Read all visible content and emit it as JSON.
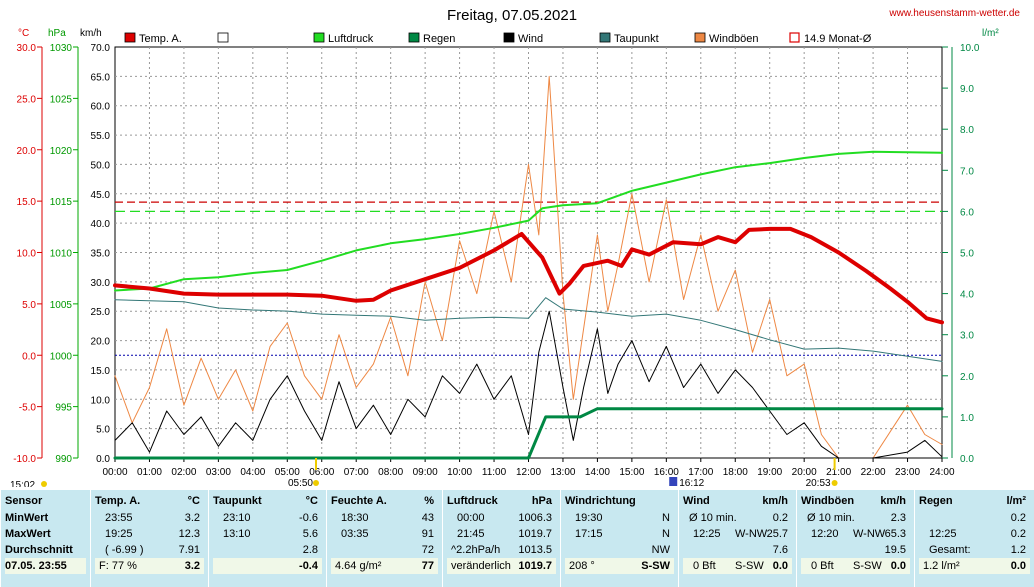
{
  "title": "Freitag, 07.05.2021",
  "source": "www.heusenstamm-wetter.de",
  "axes": {
    "temp_unit": "°C",
    "hpa_unit": "hPa",
    "kmh_unit": "km/h",
    "rain_unit": "l/m²",
    "temp_ticks": [
      "30.0",
      "25.0",
      "20.0",
      "15.0",
      "10.0",
      "5.0",
      "0.0",
      "-5.0",
      "-10.0"
    ],
    "hpa_ticks": [
      "1030",
      "1025",
      "1020",
      "1015",
      "1010",
      "1005",
      "1000",
      "995",
      "990"
    ],
    "kmh_ticks": [
      "70.0",
      "65.0",
      "60.0",
      "55.0",
      "50.0",
      "45.0",
      "40.0",
      "35.0",
      "30.0",
      "25.0",
      "20.0",
      "15.0",
      "10.0",
      "5.0",
      "0.0"
    ],
    "rain_ticks": [
      "10.0",
      "9.0",
      "8.0",
      "7.0",
      "6.0",
      "5.0",
      "4.0",
      "3.0",
      "2.0",
      "1.0",
      "0.0"
    ],
    "time_ticks": [
      "00:00",
      "01:00",
      "02:00",
      "03:00",
      "04:00",
      "05:00",
      "06:00",
      "07:00",
      "08:00",
      "09:00",
      "10:00",
      "11:00",
      "12:00",
      "13:00",
      "14:00",
      "15:00",
      "16:00",
      "17:00",
      "18:00",
      "19:00",
      "20:00",
      "21:00",
      "22:00",
      "23:00",
      "24:00"
    ],
    "markers": {
      "sunrise": "05:50",
      "sunset": "20:53",
      "left": "15:02",
      "mid": "16:12"
    }
  },
  "legend": [
    {
      "label": "Temp. A.",
      "color": "#dd0000"
    },
    {
      "label": "",
      "color": "#ffffff"
    },
    {
      "label": "Luftdruck",
      "color": "#22dd22"
    },
    {
      "label": "Regen",
      "color": "#008844"
    },
    {
      "label": "Wind",
      "color": "#000000"
    },
    {
      "label": "Taupunkt",
      "color": "#337777"
    },
    {
      "label": "Windböen",
      "color": "#ee8844"
    },
    {
      "label": "14.9 Monat-Ø",
      "color": "#dd0000"
    }
  ],
  "chart_data": {
    "type": "line",
    "x_unit": "hour",
    "xlim": [
      0,
      24
    ],
    "reference_lines": {
      "temp_month_avg": 14.9,
      "pressure_ref": 1014,
      "temp_zero": 0.0
    },
    "series": [
      {
        "name": "Temp. A.",
        "axis": "temp",
        "color": "#dd0000",
        "points": [
          [
            0,
            6.8
          ],
          [
            1,
            6.5
          ],
          [
            2,
            6.0
          ],
          [
            3,
            5.9
          ],
          [
            4,
            5.9
          ],
          [
            5,
            5.9
          ],
          [
            6,
            5.8
          ],
          [
            7,
            5.3
          ],
          [
            7.5,
            5.4
          ],
          [
            8,
            6.3
          ],
          [
            9,
            7.4
          ],
          [
            10,
            8.5
          ],
          [
            11,
            10.2
          ],
          [
            11.8,
            11.8
          ],
          [
            12.4,
            9.5
          ],
          [
            12.9,
            6.0
          ],
          [
            13.2,
            7.0
          ],
          [
            13.6,
            8.7
          ],
          [
            14.3,
            9.2
          ],
          [
            14.7,
            8.7
          ],
          [
            15,
            10.3
          ],
          [
            15.5,
            9.8
          ],
          [
            16.2,
            11.0
          ],
          [
            17,
            10.8
          ],
          [
            17.5,
            11.5
          ],
          [
            18,
            11.0
          ],
          [
            18.4,
            12.2
          ],
          [
            19,
            12.3
          ],
          [
            19.6,
            12.3
          ],
          [
            20.2,
            11.5
          ],
          [
            21,
            10.0
          ],
          [
            21.8,
            8.2
          ],
          [
            22.5,
            6.5
          ],
          [
            23,
            5.2
          ],
          [
            23.55,
            3.6
          ],
          [
            24,
            3.2
          ]
        ]
      },
      {
        "name": "Luftdruck",
        "axis": "hpa",
        "color": "#22dd22",
        "points": [
          [
            0,
            1006.3
          ],
          [
            1,
            1006.5
          ],
          [
            2,
            1007.4
          ],
          [
            3,
            1007.6
          ],
          [
            4,
            1008.0
          ],
          [
            5,
            1008.3
          ],
          [
            6,
            1009.2
          ],
          [
            7,
            1010.2
          ],
          [
            8,
            1010.9
          ],
          [
            9,
            1011.3
          ],
          [
            10,
            1011.8
          ],
          [
            11,
            1012.4
          ],
          [
            12,
            1013.1
          ],
          [
            12.4,
            1014.3
          ],
          [
            13,
            1014.6
          ],
          [
            14,
            1014.8
          ],
          [
            15,
            1016.0
          ],
          [
            16,
            1016.8
          ],
          [
            17,
            1017.6
          ],
          [
            18,
            1018.3
          ],
          [
            19,
            1018.7
          ],
          [
            20,
            1019.2
          ],
          [
            21,
            1019.6
          ],
          [
            22,
            1019.8
          ],
          [
            24,
            1019.7
          ]
        ]
      },
      {
        "name": "Taupunkt",
        "axis": "temp",
        "color": "#337777",
        "points": [
          [
            0,
            5.4
          ],
          [
            2,
            5.2
          ],
          [
            3,
            4.6
          ],
          [
            4,
            4.4
          ],
          [
            5,
            4.3
          ],
          [
            6,
            4.0
          ],
          [
            7,
            3.9
          ],
          [
            8,
            3.8
          ],
          [
            9,
            3.4
          ],
          [
            10,
            3.6
          ],
          [
            11,
            3.7
          ],
          [
            12,
            3.6
          ],
          [
            12.5,
            5.6
          ],
          [
            13,
            4.5
          ],
          [
            14,
            4.2
          ],
          [
            15,
            3.8
          ],
          [
            16,
            4.0
          ],
          [
            17,
            3.4
          ],
          [
            18,
            2.5
          ],
          [
            19,
            1.5
          ],
          [
            20,
            0.6
          ],
          [
            21,
            0.7
          ],
          [
            22,
            0.4
          ],
          [
            23,
            -0.1
          ],
          [
            24,
            -0.6
          ]
        ]
      },
      {
        "name": "Regen",
        "axis": "rain",
        "color": "#008844",
        "points": [
          [
            0,
            0
          ],
          [
            12.0,
            0
          ],
          [
            12.5,
            1.0
          ],
          [
            13.5,
            1.0
          ],
          [
            14.0,
            1.2
          ],
          [
            24,
            1.2
          ]
        ]
      },
      {
        "name": "Wind",
        "axis": "kmh",
        "color": "#000000",
        "points": [
          [
            0,
            3
          ],
          [
            0.5,
            6
          ],
          [
            1,
            1
          ],
          [
            1.5,
            8
          ],
          [
            2,
            4
          ],
          [
            2.5,
            7
          ],
          [
            3,
            2
          ],
          [
            3.5,
            6
          ],
          [
            4,
            3
          ],
          [
            4.5,
            10
          ],
          [
            5,
            14
          ],
          [
            5.5,
            8
          ],
          [
            6,
            3
          ],
          [
            6.5,
            13
          ],
          [
            7,
            5
          ],
          [
            7.5,
            9
          ],
          [
            8,
            4
          ],
          [
            8.5,
            10
          ],
          [
            9,
            7
          ],
          [
            9.5,
            14
          ],
          [
            10,
            11
          ],
          [
            10.5,
            16
          ],
          [
            11,
            10
          ],
          [
            11.5,
            14
          ],
          [
            12,
            4
          ],
          [
            12.3,
            18
          ],
          [
            12.6,
            25
          ],
          [
            13,
            12
          ],
          [
            13.3,
            3
          ],
          [
            13.6,
            12
          ],
          [
            14,
            22
          ],
          [
            14.3,
            11
          ],
          [
            14.6,
            16
          ],
          [
            15,
            20
          ],
          [
            15.5,
            13
          ],
          [
            16,
            19
          ],
          [
            16.5,
            12
          ],
          [
            17,
            16
          ],
          [
            17.5,
            11
          ],
          [
            18,
            15
          ],
          [
            18.5,
            12
          ],
          [
            19,
            8
          ],
          [
            19.5,
            4
          ],
          [
            20,
            6
          ],
          [
            20.5,
            2
          ],
          [
            21,
            0
          ],
          [
            22,
            0
          ],
          [
            23,
            1
          ],
          [
            23.5,
            3
          ],
          [
            24,
            0.2
          ]
        ]
      },
      {
        "name": "Windböen",
        "axis": "kmh",
        "color": "#ee8844",
        "points": [
          [
            0,
            14
          ],
          [
            0.5,
            6
          ],
          [
            1,
            12
          ],
          [
            1.5,
            22
          ],
          [
            2,
            9
          ],
          [
            2.5,
            17
          ],
          [
            3,
            10
          ],
          [
            3.5,
            15
          ],
          [
            4,
            8
          ],
          [
            4.5,
            19
          ],
          [
            5,
            23
          ],
          [
            5.5,
            14
          ],
          [
            6,
            10
          ],
          [
            6.5,
            21
          ],
          [
            7,
            12
          ],
          [
            7.5,
            16
          ],
          [
            8,
            24
          ],
          [
            8.5,
            14
          ],
          [
            9,
            30
          ],
          [
            9.5,
            20
          ],
          [
            10,
            37
          ],
          [
            10.5,
            28
          ],
          [
            11,
            42
          ],
          [
            11.5,
            30
          ],
          [
            12,
            50
          ],
          [
            12.3,
            38
          ],
          [
            12.6,
            65
          ],
          [
            13,
            28
          ],
          [
            13.3,
            10
          ],
          [
            13.6,
            22
          ],
          [
            14,
            38
          ],
          [
            14.3,
            25
          ],
          [
            14.6,
            33
          ],
          [
            15,
            45
          ],
          [
            15.5,
            30
          ],
          [
            16,
            44
          ],
          [
            16.5,
            27
          ],
          [
            17,
            38
          ],
          [
            17.5,
            25
          ],
          [
            18,
            32
          ],
          [
            18.5,
            18
          ],
          [
            19,
            27
          ],
          [
            19.5,
            14
          ],
          [
            20,
            16
          ],
          [
            20.5,
            4
          ],
          [
            21,
            0
          ],
          [
            22,
            0
          ],
          [
            23,
            9
          ],
          [
            23.5,
            4
          ],
          [
            24,
            2.3
          ]
        ]
      }
    ]
  },
  "panel": {
    "sensor": {
      "header": "Sensor",
      "rows": [
        "MinWert",
        "MaxWert",
        "Durchschnitt",
        "07.05.  23:55"
      ]
    },
    "temp": {
      "header": "Temp. A.",
      "unit": "°C",
      "rows": [
        [
          "23:55",
          "3.2"
        ],
        [
          "19:25",
          "12.3"
        ],
        [
          "( -6.99 )",
          "7.91"
        ],
        [
          "F: 77 %",
          "3.2"
        ]
      ]
    },
    "taupunkt": {
      "header": "Taupunkt",
      "unit": "°C",
      "rows": [
        [
          "23:10",
          "-0.6"
        ],
        [
          "13:10",
          "5.6"
        ],
        [
          "",
          "2.8"
        ],
        [
          "",
          "-0.4"
        ]
      ]
    },
    "feuchte": {
      "header": "Feuchte A.",
      "unit": "%",
      "rows": [
        [
          "18:30",
          "43"
        ],
        [
          "03:35",
          "91"
        ],
        [
          "",
          "72"
        ],
        [
          "4.64 g/m²",
          "77"
        ]
      ]
    },
    "luftdruck": {
      "header": "Luftdruck",
      "unit": "hPa",
      "rows": [
        [
          "00:00",
          "1006.3"
        ],
        [
          "21:45",
          "1019.7"
        ],
        [
          "^2.2hPa/h",
          "1013.5"
        ],
        [
          "veränderlich",
          "1019.7"
        ]
      ]
    },
    "windrichtung": {
      "header": "Windrichtung",
      "rows": [
        [
          "19:30",
          "N"
        ],
        [
          "17:15",
          "N"
        ],
        [
          "",
          "NW"
        ],
        [
          "208 °",
          "S-SW"
        ]
      ]
    },
    "wind": {
      "header": "Wind",
      "unit": "km/h",
      "rows": [
        [
          "Ø 10 min.",
          "",
          "0.2"
        ],
        [
          "12:25",
          "W-NW",
          "25.7"
        ],
        [
          "",
          "",
          "7.6"
        ],
        [
          "0 Bft",
          "S-SW",
          "0.0"
        ]
      ]
    },
    "windboen": {
      "header": "Windböen",
      "unit": "km/h",
      "rows": [
        [
          "Ø 10 min.",
          "",
          "2.3"
        ],
        [
          "12:20",
          "W-NW",
          "65.3"
        ],
        [
          "",
          "",
          "19.5"
        ],
        [
          "0 Bft",
          "S-SW",
          "0.0"
        ]
      ]
    },
    "regen": {
      "header": "Regen",
      "unit": "l/m²",
      "rows": [
        [
          "",
          "0.2"
        ],
        [
          "12:25",
          "0.2"
        ],
        [
          "Gesamt:",
          "1.2"
        ],
        [
          "1.2 l/m²",
          "0.0"
        ]
      ]
    }
  }
}
